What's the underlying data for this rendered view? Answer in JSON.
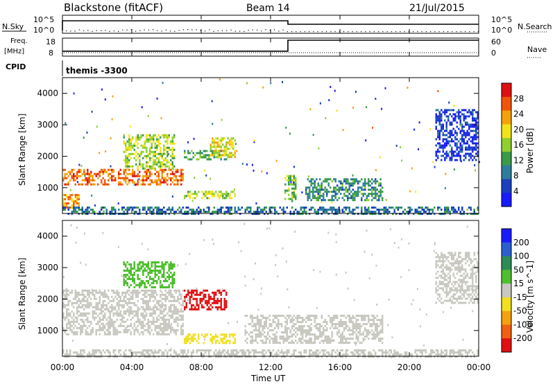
{
  "header": {
    "station": "Blackstone (fitACF)",
    "beam": "Beam 14",
    "date": "21/Jul/2015"
  },
  "strip": {
    "nsky_label": "N.Sky",
    "nsearch_label": "N.Search",
    "nsky_ticks": [
      "10^5",
      "10^0"
    ],
    "nsearch_ticks": [
      "10^5",
      "10^0"
    ],
    "freq_label_1": "Freq.",
    "freq_label_2": "[MHz]",
    "freq_ticks": [
      "18",
      "8"
    ],
    "nave_label": "Nave",
    "nave_ticks": [
      "60",
      "0"
    ],
    "cpid_label": "CPID",
    "cpid_value": "themis -3300"
  },
  "x_axis": {
    "label": "Time UT",
    "ticks": [
      "00:00",
      "04:00",
      "08:00",
      "12:00",
      "16:00",
      "20:00",
      "00:00"
    ]
  },
  "power_panel": {
    "ylabel": "Slant Range [km]",
    "yticks": [
      "1000",
      "2000",
      "3000",
      "4000"
    ],
    "colorbar_label": "Power [dB]",
    "colorbar_ticks": [
      "4",
      "8",
      "12",
      "16",
      "20",
      "24",
      "28"
    ],
    "colors": [
      "#1a1aff",
      "#1a3fbf",
      "#2e7d9b",
      "#3a9a4a",
      "#8fcf2f",
      "#f2e21a",
      "#f5a20a",
      "#f2550a",
      "#e01010"
    ]
  },
  "velocity_panel": {
    "ylabel": "Slant Range [km]",
    "yticks": [
      "1000",
      "2000",
      "3000",
      "4000"
    ],
    "colorbar_label": "Velocity [m s^-1]",
    "colorbar_ticks": [
      "200",
      "100",
      "50",
      "15",
      "-15",
      "-50",
      "-100",
      "-200"
    ],
    "colors": [
      "#1a1aff",
      "#2a5fd0",
      "#2e8b57",
      "#4fbf2f",
      "#c8c8c0",
      "#f0e020",
      "#f5a010",
      "#f06010",
      "#e01010"
    ]
  },
  "chart_data": {
    "type": "heatmap",
    "x_range_hours": [
      0,
      24
    ],
    "y_range_km": [
      180,
      4500
    ],
    "grid": false,
    "power_echo_bands": [
      {
        "t_start": 0.0,
        "t_end": 7.0,
        "range_start_km": 1100,
        "range_end_km": 1600,
        "power_db": 26
      },
      {
        "t_start": 0.0,
        "t_end": 1.0,
        "range_start_km": 400,
        "range_end_km": 800,
        "power_db": 24
      },
      {
        "t_start": 3.5,
        "t_end": 6.5,
        "range_start_km": 1600,
        "range_end_km": 2700,
        "power_db": 18
      },
      {
        "t_start": 7.0,
        "t_end": 9.5,
        "range_start_km": 1900,
        "range_end_km": 2200,
        "power_db": 14
      },
      {
        "t_start": 8.5,
        "t_end": 10.0,
        "range_start_km": 2000,
        "range_end_km": 2600,
        "power_db": 20
      },
      {
        "t_start": 7.0,
        "t_end": 10.0,
        "range_start_km": 700,
        "range_end_km": 900,
        "power_db": 18
      },
      {
        "t_start": 12.8,
        "t_end": 13.5,
        "range_start_km": 600,
        "range_end_km": 1400,
        "power_db": 16
      },
      {
        "t_start": 14.0,
        "t_end": 18.5,
        "range_start_km": 600,
        "range_end_km": 1300,
        "power_db": 12
      },
      {
        "t_start": 21.5,
        "t_end": 24.0,
        "range_start_km": 1900,
        "range_end_km": 3500,
        "power_db": 6
      },
      {
        "t_start": 0.0,
        "t_end": 24.0,
        "range_start_km": 200,
        "range_end_km": 400,
        "power_db": 10
      }
    ],
    "velocity_echo_bands": [
      {
        "t_start": 0.0,
        "t_end": 7.0,
        "range_start_km": 900,
        "range_end_km": 2300,
        "velocity_ms": 0
      },
      {
        "t_start": 7.0,
        "t_end": 9.5,
        "range_start_km": 1700,
        "range_end_km": 2300,
        "velocity_ms": -200
      },
      {
        "t_start": 7.0,
        "t_end": 10.0,
        "range_start_km": 600,
        "range_end_km": 900,
        "velocity_ms": -50
      },
      {
        "t_start": 3.5,
        "t_end": 6.5,
        "range_start_km": 2400,
        "range_end_km": 3200,
        "velocity_ms": 50
      },
      {
        "t_start": 10.5,
        "t_end": 18.5,
        "range_start_km": 600,
        "range_end_km": 1500,
        "velocity_ms": 0
      },
      {
        "t_start": 21.5,
        "t_end": 24.0,
        "range_start_km": 1900,
        "range_end_km": 3500,
        "velocity_ms": 0
      },
      {
        "t_start": 0.0,
        "t_end": 24.0,
        "range_start_km": 200,
        "range_end_km": 400,
        "velocity_ms": -15
      }
    ],
    "nsky_nsearch": {
      "frequency_mhz_before_13": 10,
      "frequency_mhz_after_13": 18,
      "transition_hour": 13
    }
  }
}
